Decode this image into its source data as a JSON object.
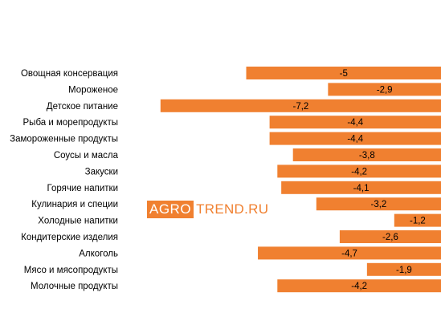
{
  "chart_data": {
    "type": "bar",
    "orientation": "horizontal",
    "title": "",
    "xlabel": "",
    "ylabel": "",
    "categories": [
      "Овощная консервация",
      "Мороженое",
      "Детское питание",
      "Рыба и морепродукты",
      "Замороженные продукты",
      "Соусы и масла",
      "Закуски",
      "Горячие напитки",
      "Кулинария и специи",
      "Холодные напитки",
      "Кондитерские изделия",
      "Алкоголь",
      "Мясо и мясопродукты",
      "Молочные продукты"
    ],
    "values": [
      -5,
      -2.9,
      -7.2,
      -4.4,
      -4.4,
      -3.8,
      -4.2,
      -4.1,
      -3.2,
      -1.2,
      -2.6,
      -4.7,
      -1.9,
      -4.2
    ],
    "data_labels": [
      "-5",
      "-2,9",
      "-7,2",
      "-4,4",
      "-4,4",
      "-3,8",
      "-4,2",
      "-4,1",
      "-3,2",
      "-1,2",
      "-2,6",
      "-4,7",
      "-1,9",
      "-4,2"
    ],
    "bar_color": "#f08030",
    "grid": false,
    "legend": "none"
  },
  "watermark": {
    "logo_text": "AGRO",
    "rest_text": "TREND.RU",
    "color": "#f08030"
  }
}
